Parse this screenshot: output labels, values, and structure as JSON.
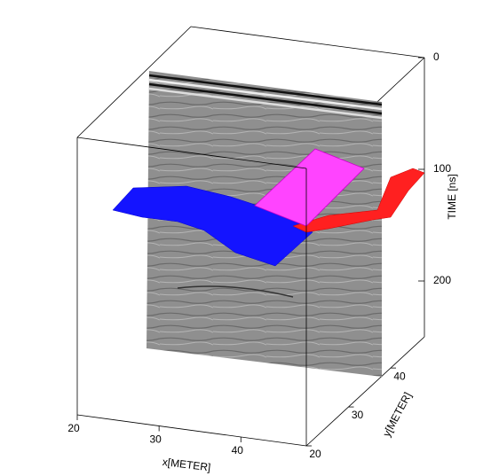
{
  "chart_data": {
    "type": "volume3d",
    "xlabel": "x[METER]",
    "ylabel": "y[METER]",
    "zlabel": "TIME [ns]",
    "xlim": [
      20,
      48
    ],
    "xticks": [
      20,
      30,
      40
    ],
    "ylim": [
      20,
      48
    ],
    "yticks": [
      20,
      30,
      40
    ],
    "zlim": [
      0,
      250
    ],
    "zticks": [
      0,
      100,
      200
    ]
  }
}
